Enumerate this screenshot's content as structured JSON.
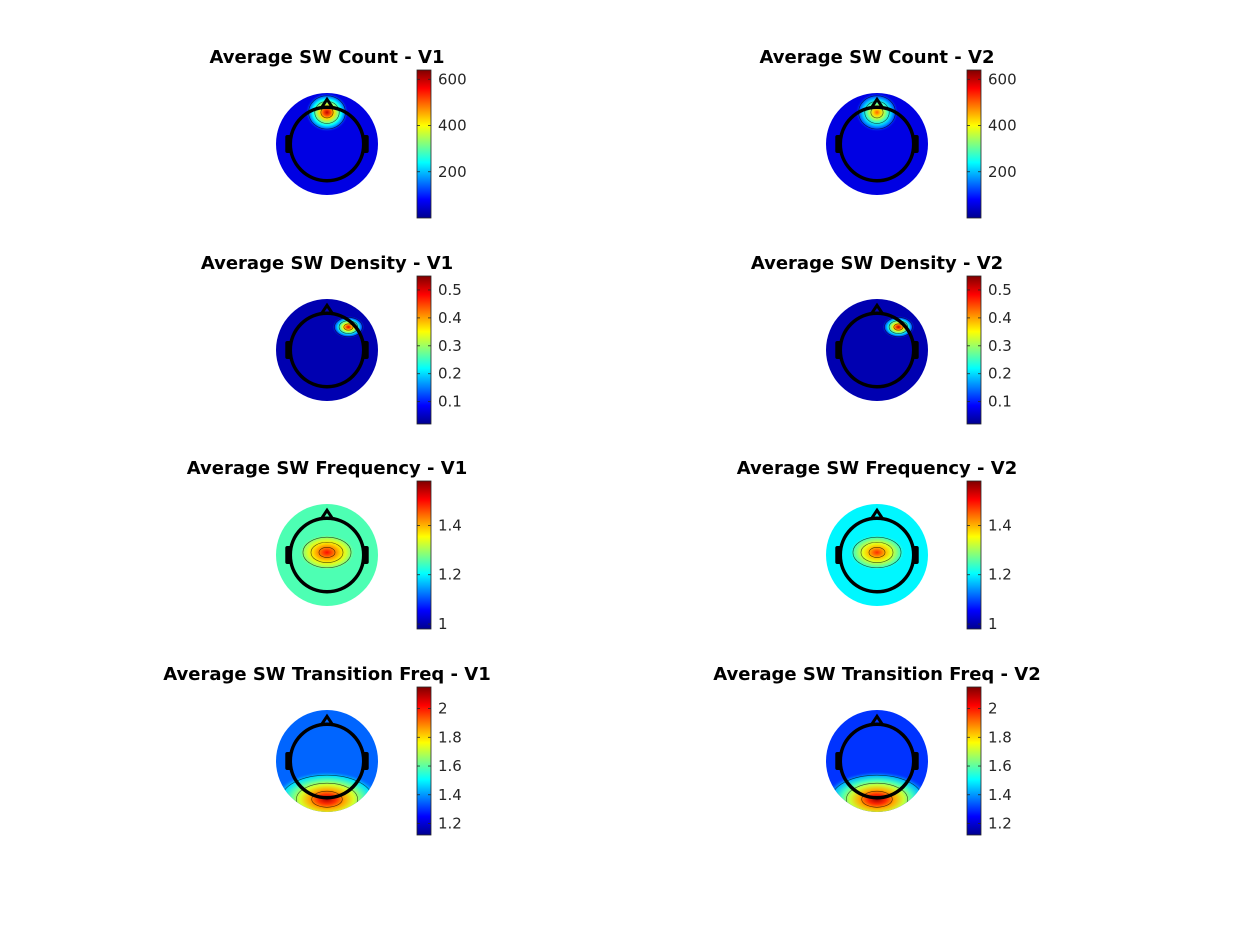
{
  "figure": {
    "colormap": "jet",
    "colormap_stops": [
      "#00008f",
      "#0000ff",
      "#0080ff",
      "#00ffff",
      "#80ff80",
      "#ffff00",
      "#ff8000",
      "#ff0000",
      "#800000"
    ],
    "head_outline_color": "#000000"
  },
  "chart_data": [
    {
      "type": "heatmap",
      "kind": "topoplot",
      "title": "Average SW Count - V1",
      "clim": [
        0,
        640
      ],
      "cticks": [
        200,
        400,
        600
      ],
      "hotspots": [
        {
          "name": "frontal",
          "value": 600
        }
      ],
      "background_value": 60
    },
    {
      "type": "heatmap",
      "kind": "topoplot",
      "title": "Average SW Count - V2",
      "clim": [
        0,
        640
      ],
      "cticks": [
        200,
        400,
        600
      ],
      "hotspots": [
        {
          "name": "frontal",
          "value": 500
        }
      ],
      "background_value": 60
    },
    {
      "type": "heatmap",
      "kind": "topoplot",
      "title": "Average SW Density - V1",
      "clim": [
        0.02,
        0.55
      ],
      "cticks": [
        0.1,
        0.2,
        0.3,
        0.4,
        0.5
      ],
      "hotspots": [
        {
          "name": "right-frontal",
          "value": 0.5
        }
      ],
      "background_value": 0.04
    },
    {
      "type": "heatmap",
      "kind": "topoplot",
      "title": "Average SW Density - V2",
      "clim": [
        0.02,
        0.55
      ],
      "cticks": [
        0.1,
        0.2,
        0.3,
        0.4,
        0.5
      ],
      "hotspots": [
        {
          "name": "right-frontal",
          "value": 0.52
        }
      ],
      "background_value": 0.04
    },
    {
      "type": "heatmap",
      "kind": "topoplot",
      "title": "Average SW Frequency - V1",
      "clim": [
        0.98,
        1.58
      ],
      "cticks": [
        1,
        1.2,
        1.4
      ],
      "hotspots": [
        {
          "name": "central",
          "value": 1.5
        }
      ],
      "background_value": 1.25
    },
    {
      "type": "heatmap",
      "kind": "topoplot",
      "title": "Average SW Frequency - V2",
      "clim": [
        0.98,
        1.58
      ],
      "cticks": [
        1,
        1.2,
        1.4
      ],
      "hotspots": [
        {
          "name": "central",
          "value": 1.48
        }
      ],
      "background_value": 1.2
    },
    {
      "type": "heatmap",
      "kind": "topoplot",
      "title": "Average SW Transition Freq - V1",
      "clim": [
        1.12,
        2.15
      ],
      "cticks": [
        1.2,
        1.4,
        1.6,
        1.8,
        2
      ],
      "hotspots": [
        {
          "name": "occipital-rim",
          "value": 2.1
        }
      ],
      "background_value": 1.35
    },
    {
      "type": "heatmap",
      "kind": "topoplot",
      "title": "Average SW Transition Freq - V2",
      "clim": [
        1.12,
        2.15
      ],
      "cticks": [
        1.2,
        1.4,
        1.6,
        1.8,
        2
      ],
      "hotspots": [
        {
          "name": "occipital-rim",
          "value": 2.12
        }
      ],
      "background_value": 1.3
    }
  ]
}
